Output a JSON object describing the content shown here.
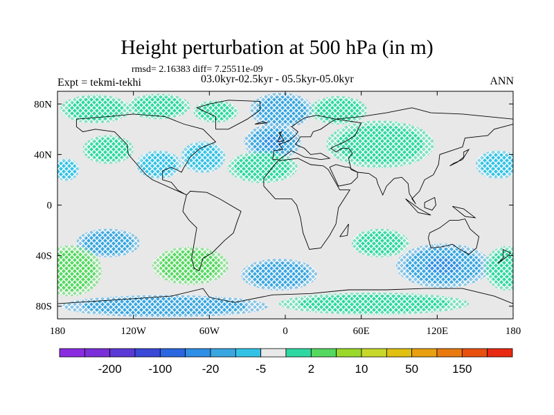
{
  "chart_data": {
    "type": "heatmap",
    "title": "Height perturbation at 500 hPa (in m)",
    "stats_line": "rmsd= 2.16383 diff= 7.25511e-09",
    "left_label": "Expt = tekmi-tekhi",
    "center_label": "03.0kyr-02.5kyr - 05.5kyr-05.0kyr",
    "right_label": "ANN",
    "projection": "cylindrical-equidistant",
    "xlim": [
      -180,
      180
    ],
    "ylim": [
      -90,
      90
    ],
    "x_ticks": [
      {
        "value": -180,
        "label": "180"
      },
      {
        "value": -120,
        "label": "120W"
      },
      {
        "value": -60,
        "label": "60W"
      },
      {
        "value": 0,
        "label": "0"
      },
      {
        "value": 60,
        "label": "60E"
      },
      {
        "value": 120,
        "label": "120E"
      },
      {
        "value": 180,
        "label": "180"
      }
    ],
    "y_ticks": [
      {
        "value": 80,
        "label": "80N"
      },
      {
        "value": 40,
        "label": "40N"
      },
      {
        "value": 0,
        "label": "0"
      },
      {
        "value": -40,
        "label": "40S"
      },
      {
        "value": -80,
        "label": "80S"
      }
    ],
    "colorbar": {
      "colors": [
        "#8a2be2",
        "#7a2fd8",
        "#5a3ad6",
        "#3a48d8",
        "#2a66e0",
        "#2f8ee6",
        "#3aa6e0",
        "#33c2e6",
        "#e8e8e8",
        "#2ed8a0",
        "#55d860",
        "#9ad82a",
        "#c8d82a",
        "#e0c010",
        "#e8a010",
        "#e87a10",
        "#e85010",
        "#e82a10"
      ],
      "labels": [
        {
          "after_box": 1,
          "label": "-200"
        },
        {
          "after_box": 3,
          "label": "-100"
        },
        {
          "after_box": 5,
          "label": "-20"
        },
        {
          "after_box": 7,
          "label": "-5"
        },
        {
          "after_box": 9,
          "label": "2"
        },
        {
          "after_box": 11,
          "label": "10"
        },
        {
          "after_box": 13,
          "label": "50"
        },
        {
          "after_box": 15,
          "label": "150"
        }
      ]
    },
    "anomalies": [
      {
        "lon": -150,
        "lat": 76,
        "rlon": 22,
        "rlat": 9,
        "value": 4
      },
      {
        "lon": -100,
        "lat": 78,
        "rlon": 20,
        "rlat": 8,
        "value": 4
      },
      {
        "lon": -55,
        "lat": 74,
        "rlon": 14,
        "rlat": 7,
        "value": 3
      },
      {
        "lon": -140,
        "lat": 44,
        "rlon": 16,
        "rlat": 9,
        "value": 3
      },
      {
        "lon": -100,
        "lat": 32,
        "rlon": 14,
        "rlat": 9,
        "value": -3
      },
      {
        "lon": -65,
        "lat": 38,
        "rlon": 14,
        "rlat": 10,
        "value": -3
      },
      {
        "lon": -3,
        "lat": 75,
        "rlon": 20,
        "rlat": 11,
        "value": -4
      },
      {
        "lon": -10,
        "lat": 50,
        "rlon": 18,
        "rlat": 11,
        "value": -5
      },
      {
        "lon": -18,
        "lat": 30,
        "rlon": 22,
        "rlat": 10,
        "value": 3
      },
      {
        "lon": 42,
        "lat": 75,
        "rlon": 18,
        "rlat": 9,
        "value": 3
      },
      {
        "lon": 75,
        "lat": 48,
        "rlon": 34,
        "rlat": 15,
        "value": 4
      },
      {
        "lon": 168,
        "lat": 32,
        "rlon": 14,
        "rlat": 9,
        "value": -3
      },
      {
        "lon": -173,
        "lat": 28,
        "rlon": 8,
        "rlat": 7,
        "value": -3
      },
      {
        "lon": 75,
        "lat": -30,
        "rlon": 18,
        "rlat": 9,
        "value": 3
      },
      {
        "lon": -140,
        "lat": -30,
        "rlon": 20,
        "rlat": 9,
        "value": -4
      },
      {
        "lon": 125,
        "lat": -48,
        "rlon": 30,
        "rlat": 14,
        "value": -5
      },
      {
        "lon": -170,
        "lat": -52,
        "rlon": 20,
        "rlat": 16,
        "value": 5
      },
      {
        "lon": 175,
        "lat": -50,
        "rlon": 14,
        "rlat": 14,
        "value": 4
      },
      {
        "lon": -75,
        "lat": -48,
        "rlon": 24,
        "rlat": 12,
        "value": 5
      },
      {
        "lon": -5,
        "lat": -55,
        "rlon": 24,
        "rlat": 10,
        "value": -4
      },
      {
        "lon": -95,
        "lat": -80,
        "rlon": 65,
        "rlat": 7,
        "value": -4
      },
      {
        "lon": 70,
        "lat": -78,
        "rlon": 60,
        "rlat": 7,
        "value": 3
      }
    ]
  }
}
